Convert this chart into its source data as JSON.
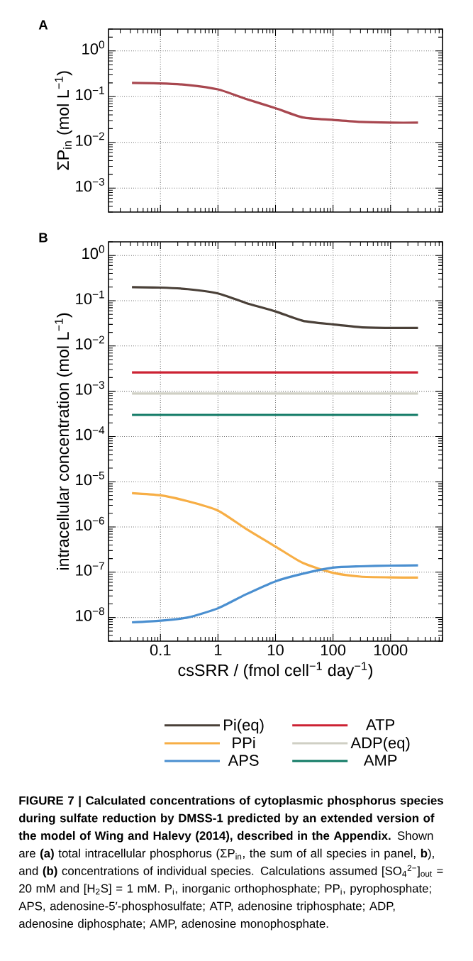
{
  "chart_data": [
    {
      "type": "line",
      "title": "A",
      "ylabel": "ΣP$_{in}$ (mol L$^{−1}$)",
      "x": [
        0.032,
        0.1,
        0.3,
        1,
        3,
        10,
        30,
        100,
        300,
        1000,
        3000
      ],
      "series": [
        {
          "color": "#a8474f",
          "values": [
            0.2,
            0.195,
            0.18,
            0.144,
            0.09,
            0.056,
            0.035,
            0.031,
            0.028,
            0.027,
            0.027
          ]
        }
      ],
      "log": "xy",
      "grid": true,
      "tick_labels": "y",
      "xlim": [
        0.0125,
        8000
      ],
      "ylim": [
        0.0003,
        3
      ],
      "xticks": [
        0.1,
        1,
        10,
        100,
        1000
      ],
      "yticks": [
        {
          "value": 0.001,
          "label": "10$^{−3}$"
        },
        {
          "value": 0.01,
          "label": "10$^{−2}$"
        },
        {
          "value": 0.1,
          "label": "10$^{−1}$"
        },
        {
          "value": 1,
          "label": "10$^{0}$"
        }
      ]
    },
    {
      "type": "line",
      "title": "B",
      "ylabel": "intracellular concentration (mol L$^{−1}$)",
      "xlabel": "csSRR / (fmol cell$^{−1}$ day$^{−1}$)",
      "x": [
        0.032,
        0.1,
        0.3,
        1,
        3,
        10,
        30,
        100,
        300,
        1000,
        3000
      ],
      "series": [
        {
          "name": "Pi(eq)",
          "color": "#4a4038",
          "values": [
            0.2,
            0.195,
            0.18,
            0.145,
            0.09,
            0.058,
            0.036,
            0.03,
            0.026,
            0.025,
            0.025
          ]
        },
        {
          "name": "ATP",
          "color": "#cc2233",
          "values": [
            0.0026,
            0.0026,
            0.0026,
            0.0026,
            0.0026,
            0.0026,
            0.0026,
            0.0026,
            0.0026,
            0.0026,
            0.0026
          ]
        },
        {
          "name": "PPi",
          "color": "#f7ae45",
          "values": [
            5.6e-06,
            5e-06,
            3.7e-06,
            2.3e-06,
            9.3e-07,
            3.7e-07,
            1.6e-07,
            9.7e-08,
            8e-08,
            7.7e-08,
            7.6e-08
          ]
        },
        {
          "name": "ADP(eq)",
          "color": "#cfcfc4",
          "values": [
            0.00089,
            0.00089,
            0.00089,
            0.00089,
            0.00089,
            0.00089,
            0.00089,
            0.00089,
            0.00089,
            0.00089,
            0.00089
          ]
        },
        {
          "name": "APS",
          "color": "#4a8fd0",
          "values": [
            7.8e-09,
            8.5e-09,
            1e-08,
            1.6e-08,
            3.2e-08,
            6.3e-08,
            9.3e-08,
            1.26e-07,
            1.35e-07,
            1.4e-07,
            1.42e-07
          ]
        },
        {
          "name": "AMP",
          "color": "#117a65",
          "values": [
            0.0003,
            0.0003,
            0.0003,
            0.0003,
            0.0003,
            0.0003,
            0.0003,
            0.0003,
            0.0003,
            0.0003,
            0.0003
          ]
        }
      ],
      "log": "xy",
      "grid": true,
      "legend": "bottom",
      "xlim": [
        0.0125,
        8000
      ],
      "ylim": [
        3e-09,
        2
      ],
      "xticks": [
        0.1,
        1,
        10,
        100,
        1000
      ],
      "yticks": [
        {
          "value": 1e-08,
          "label": "10$^{−8}$"
        },
        {
          "value": 1e-07,
          "label": "10$^{−7}$"
        },
        {
          "value": 1e-06,
          "label": "10$^{−6}$"
        },
        {
          "value": 1e-05,
          "label": "10$^{−5}$"
        },
        {
          "value": 0.0001,
          "label": "10$^{−4}$"
        },
        {
          "value": 0.001,
          "label": "10$^{−3}$"
        },
        {
          "value": 0.01,
          "label": "10$^{−2}$"
        },
        {
          "value": 0.1,
          "label": "10$^{−1}$"
        },
        {
          "value": 1,
          "label": "10$^{0}$"
        }
      ],
      "annotations": [
        "**FIGURE 7 | Calculated concentrations of cytoplasmic phosphorus species during sulfate reduction by DMSS-1 predicted by an extended version of the model of Wing and Halevy (2014), described in the Appendix.** Shown are **(a)** total intracellular phosphorus (ΣP$_{in}$, the sum of all species in panel, **b**), and **(b)** concentrations of individual species. Calculations assumed [SO$_{4}$$^{2−}$]$_{out}$ = 20 mM and [H$_{2}$S] = 1 mM. P$_{i}$, inorganic orthophosphate; PP$_{i}$, pyrophosphate; APS, adenosine-5′-phosphosulfate; ATP, adenosine triphosphate; ADP, adenosine diphosphate; AMP, adenosine monophosphate."
      ]
    }
  ]
}
